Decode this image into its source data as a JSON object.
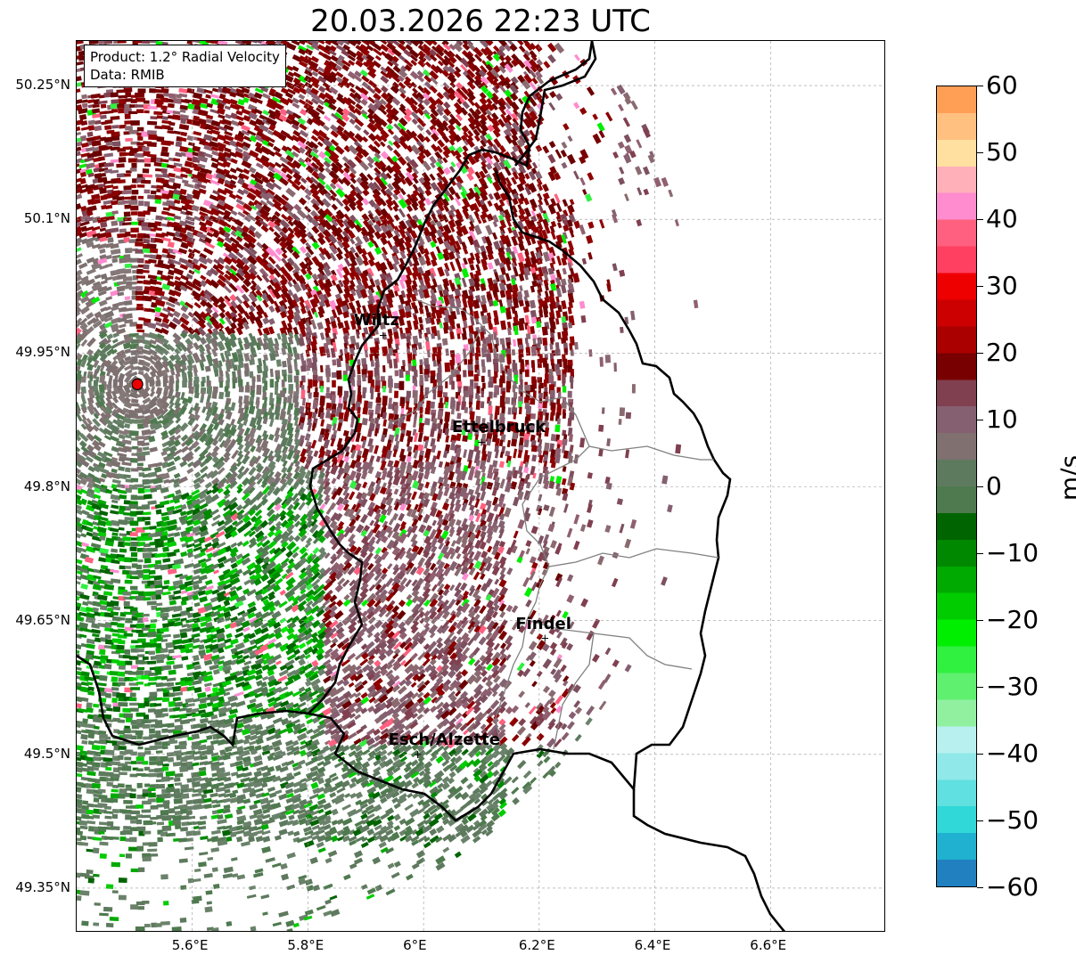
{
  "title": "20.03.2026 22:23 UTC",
  "info_box": {
    "product": "Product: 1.2° Radial Velocity",
    "data_source": "Data: RMIB"
  },
  "axes": {
    "lon_ticks": [
      "5.6°E",
      "5.8°E",
      "6°E",
      "6.2°E",
      "6.4°E",
      "6.6°E"
    ],
    "lat_ticks": [
      "50.25°N",
      "50.1°N",
      "49.95°N",
      "49.8°N",
      "49.65°N",
      "49.5°N",
      "49.35°N"
    ],
    "lon_range": [
      5.4,
      6.8
    ],
    "lat_range": [
      49.3,
      50.3
    ],
    "grid": true
  },
  "cities": [
    {
      "name": "Wiltz",
      "lon": 5.93,
      "lat": 49.97
    },
    {
      "name": "Ettelbruck",
      "lon": 6.1,
      "lat": 49.85
    },
    {
      "name": "Findel",
      "lon": 6.21,
      "lat": 49.63
    },
    {
      "name": "Esch/Alzette",
      "lon": 5.99,
      "lat": 49.5
    }
  ],
  "radar_site": {
    "lon": 5.505,
    "lat": 49.915,
    "color": "#ee0000"
  },
  "colorbar": {
    "unit": "m/s",
    "min": -60,
    "max": 60,
    "tick_labels": [
      "60",
      "50",
      "40",
      "30",
      "20",
      "10",
      "0",
      "−10",
      "−20",
      "−30",
      "−40",
      "−50",
      "−60"
    ],
    "colors_top_to_bottom": [
      "#ff9f55",
      "#ffc080",
      "#ffe0a0",
      "#ffb0b8",
      "#ff8ccf",
      "#ff6080",
      "#ff4060",
      "#ee0000",
      "#cc0000",
      "#aa0000",
      "#780000",
      "#804050",
      "#856070",
      "#807070",
      "#5e7a5e",
      "#4f7a4f",
      "#006400",
      "#008800",
      "#00aa00",
      "#00cc00",
      "#00ee00",
      "#30f040",
      "#60f070",
      "#90f0a0",
      "#b8f0f0",
      "#90e8e8",
      "#60e0e0",
      "#30d8d8",
      "#20b0d0",
      "#2080c0"
    ]
  }
}
